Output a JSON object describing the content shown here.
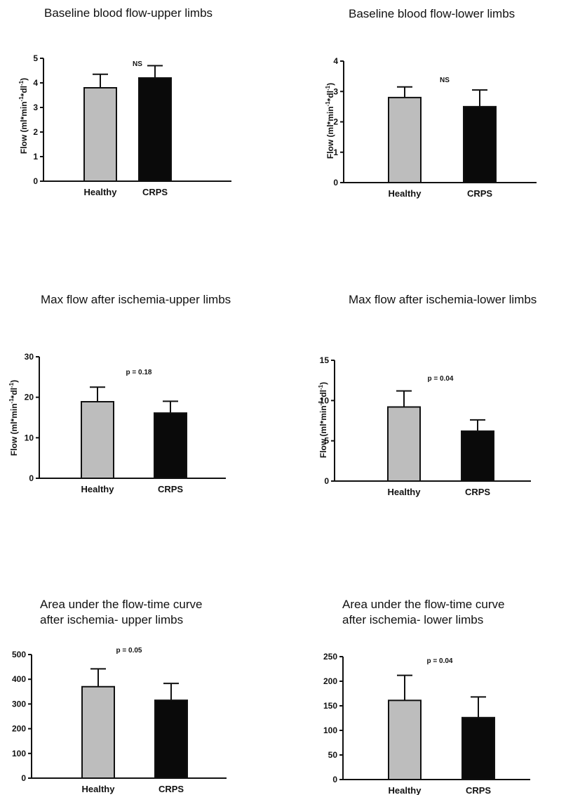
{
  "colors": {
    "healthy": "#bdbdbd",
    "crps": "#0a0a0a",
    "axis": "#111111"
  },
  "chart_data": [
    {
      "type": "bar",
      "title_lines": [
        "Baseline blood flow-upper limbs"
      ],
      "ylabel": {
        "main": "Flow (ml*min",
        "sup1": "-1",
        "mid": "*dl",
        "sup2": "-1",
        "end": ")"
      },
      "categories": [
        "Healthy",
        "CRPS"
      ],
      "values": [
        3.8,
        4.2
      ],
      "errors": [
        0.55,
        0.5
      ],
      "ylim": [
        0,
        5
      ],
      "yticks": [
        0,
        1,
        2,
        3,
        4,
        5
      ],
      "annotation": "NS"
    },
    {
      "type": "bar",
      "title_lines": [
        "Baseline blood flow-lower limbs"
      ],
      "ylabel": {
        "main": "Flow (ml*min",
        "sup1": "-1",
        "mid": "*dl",
        "sup2": "-1",
        "end": ")"
      },
      "categories": [
        "Healthy",
        "CRPS"
      ],
      "values": [
        2.8,
        2.5
      ],
      "errors": [
        0.35,
        0.55
      ],
      "ylim": [
        0,
        4
      ],
      "yticks": [
        0,
        1,
        2,
        3,
        4
      ],
      "annotation": "NS"
    },
    {
      "type": "bar",
      "title_lines": [
        "Max flow after ischemia-upper limbs"
      ],
      "ylabel": {
        "main": "Flow (ml*min",
        "sup1": "-1",
        "mid": "*dl",
        "sup2": "-1",
        "end": ")"
      },
      "categories": [
        "Healthy",
        "CRPS"
      ],
      "values": [
        18.9,
        16.1
      ],
      "errors": [
        3.6,
        2.9
      ],
      "ylim": [
        0,
        30
      ],
      "yticks": [
        0,
        10,
        20,
        30
      ],
      "annotation": "p = 0.18"
    },
    {
      "type": "bar",
      "title_lines": [
        "Max flow after ischemia-lower limbs"
      ],
      "ylabel": {
        "main": "Flow (ml*min",
        "sup1": "-1",
        "mid": "*dl",
        "sup2": "-1",
        "end": ")"
      },
      "categories": [
        "Healthy",
        "CRPS"
      ],
      "values": [
        9.2,
        6.2
      ],
      "errors": [
        2.0,
        1.4
      ],
      "ylim": [
        0,
        15
      ],
      "yticks": [
        0,
        5,
        10,
        15
      ],
      "annotation": "p = 0.04"
    },
    {
      "type": "bar",
      "title_lines": [
        "Area under the flow-time curve",
        "after ischemia- upper limbs"
      ],
      "ylabel": null,
      "categories": [
        "Healthy",
        "CRPS"
      ],
      "values": [
        370,
        315
      ],
      "errors": [
        72,
        68
      ],
      "ylim": [
        0,
        500
      ],
      "yticks": [
        0,
        100,
        200,
        300,
        400,
        500
      ],
      "annotation": "p = 0.05"
    },
    {
      "type": "bar",
      "title_lines": [
        "Area under the flow-time curve",
        "after ischemia- lower limbs"
      ],
      "ylabel": null,
      "categories": [
        "Healthy",
        "CRPS"
      ],
      "values": [
        161,
        126
      ],
      "errors": [
        51,
        42
      ],
      "ylim": [
        0,
        250
      ],
      "yticks": [
        0,
        50,
        100,
        150,
        200,
        250
      ],
      "annotation": "p = 0.04"
    }
  ]
}
